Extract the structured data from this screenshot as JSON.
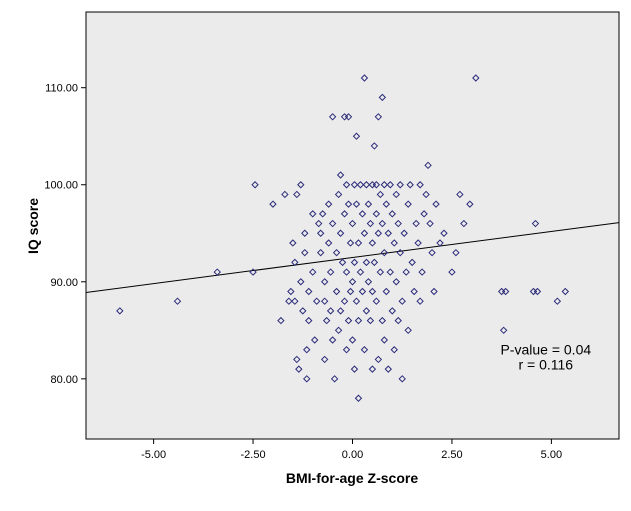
{
  "chart_data": {
    "type": "scatter",
    "title": "",
    "xlabel": "BMI-for-age Z-score",
    "ylabel": "IQ score",
    "xlim": [
      -6.7,
      6.7
    ],
    "ylim": [
      73.8,
      117.8
    ],
    "xticks": [
      -5.0,
      -2.5,
      0.0,
      2.5,
      5.0
    ],
    "xtick_labels": [
      "-5.00",
      "-2.50",
      "0.00",
      "2.50",
      "5.00"
    ],
    "yticks": [
      80,
      90,
      100,
      110
    ],
    "ytick_labels": [
      "80.00",
      "90.00",
      "100.00",
      "110.00"
    ],
    "grid": false,
    "plot_background": "#ebebeb",
    "marker_color": "#2b2b7a",
    "marker_shape": "diamond",
    "fit_line": {
      "x": [
        -6.7,
        6.7
      ],
      "y": [
        88.9,
        96.1
      ],
      "color": "#000000"
    },
    "annotations": [
      {
        "text": "P-value = 0.04",
        "x": 4.86,
        "y": 83.0
      },
      {
        "text": "r = 0.116",
        "x": 4.86,
        "y": 81.5
      }
    ],
    "points": [
      [
        -5.85,
        87
      ],
      [
        -4.4,
        88
      ],
      [
        -3.4,
        91
      ],
      [
        -2.5,
        91
      ],
      [
        -2.45,
        100
      ],
      [
        -2.0,
        98
      ],
      [
        -1.7,
        99
      ],
      [
        -1.8,
        86
      ],
      [
        -1.6,
        88
      ],
      [
        -1.55,
        89
      ],
      [
        -1.5,
        94
      ],
      [
        -1.45,
        92
      ],
      [
        -1.45,
        88
      ],
      [
        -1.4,
        82
      ],
      [
        -1.35,
        81
      ],
      [
        -1.4,
        99
      ],
      [
        -1.3,
        100
      ],
      [
        -1.3,
        90
      ],
      [
        -1.25,
        87
      ],
      [
        -1.2,
        95
      ],
      [
        -1.2,
        93
      ],
      [
        -1.15,
        83
      ],
      [
        -1.15,
        80
      ],
      [
        -1.1,
        89
      ],
      [
        -1.1,
        86
      ],
      [
        -1.0,
        97
      ],
      [
        -1.0,
        91
      ],
      [
        -0.95,
        84
      ],
      [
        -0.9,
        88
      ],
      [
        -0.85,
        96
      ],
      [
        -0.8,
        95
      ],
      [
        -0.8,
        93
      ],
      [
        -0.75,
        97
      ],
      [
        -0.7,
        90
      ],
      [
        -0.7,
        88
      ],
      [
        -0.7,
        82
      ],
      [
        -0.65,
        86
      ],
      [
        -0.6,
        98
      ],
      [
        -0.6,
        94
      ],
      [
        -0.55,
        91
      ],
      [
        -0.55,
        87
      ],
      [
        -0.5,
        107
      ],
      [
        -0.5,
        96
      ],
      [
        -0.5,
        84
      ],
      [
        -0.45,
        80
      ],
      [
        -0.4,
        93
      ],
      [
        -0.4,
        89
      ],
      [
        -0.35,
        99
      ],
      [
        -0.35,
        85
      ],
      [
        -0.3,
        101
      ],
      [
        -0.3,
        95
      ],
      [
        -0.3,
        87
      ],
      [
        -0.25,
        92
      ],
      [
        -0.2,
        107
      ],
      [
        -0.2,
        97
      ],
      [
        -0.2,
        88
      ],
      [
        -0.15,
        100
      ],
      [
        -0.15,
        91
      ],
      [
        -0.15,
        83
      ],
      [
        -0.1,
        107
      ],
      [
        -0.1,
        98
      ],
      [
        -0.1,
        86
      ],
      [
        -0.05,
        94
      ],
      [
        -0.05,
        89
      ],
      [
        0.0,
        96
      ],
      [
        0.0,
        90
      ],
      [
        0.0,
        84
      ],
      [
        0.05,
        100
      ],
      [
        0.05,
        92
      ],
      [
        0.05,
        81
      ],
      [
        0.1,
        105
      ],
      [
        0.1,
        98
      ],
      [
        0.1,
        88
      ],
      [
        0.15,
        94
      ],
      [
        0.15,
        86
      ],
      [
        0.15,
        78
      ],
      [
        0.2,
        100
      ],
      [
        0.2,
        91
      ],
      [
        0.25,
        97
      ],
      [
        0.25,
        89
      ],
      [
        0.3,
        111
      ],
      [
        0.3,
        95
      ],
      [
        0.3,
        83
      ],
      [
        0.35,
        100
      ],
      [
        0.35,
        92
      ],
      [
        0.35,
        87
      ],
      [
        0.4,
        98
      ],
      [
        0.4,
        90
      ],
      [
        0.45,
        96
      ],
      [
        0.45,
        86
      ],
      [
        0.5,
        100
      ],
      [
        0.5,
        94
      ],
      [
        0.5,
        89
      ],
      [
        0.5,
        81
      ],
      [
        0.55,
        104
      ],
      [
        0.55,
        92
      ],
      [
        0.6,
        100
      ],
      [
        0.6,
        97
      ],
      [
        0.6,
        88
      ],
      [
        0.65,
        107
      ],
      [
        0.65,
        95
      ],
      [
        0.65,
        82
      ],
      [
        0.7,
        99
      ],
      [
        0.7,
        91
      ],
      [
        0.75,
        109
      ],
      [
        0.75,
        96
      ],
      [
        0.75,
        86
      ],
      [
        0.8,
        100
      ],
      [
        0.8,
        93
      ],
      [
        0.8,
        84
      ],
      [
        0.85,
        98
      ],
      [
        0.85,
        89
      ],
      [
        0.9,
        95
      ],
      [
        0.9,
        81
      ],
      [
        0.95,
        100
      ],
      [
        0.95,
        91
      ],
      [
        1.0,
        97
      ],
      [
        1.0,
        87
      ],
      [
        1.05,
        94
      ],
      [
        1.05,
        83
      ],
      [
        1.1,
        99
      ],
      [
        1.1,
        90
      ],
      [
        1.15,
        96
      ],
      [
        1.15,
        86
      ],
      [
        1.2,
        100
      ],
      [
        1.2,
        93
      ],
      [
        1.25,
        88
      ],
      [
        1.25,
        80
      ],
      [
        1.3,
        95
      ],
      [
        1.35,
        91
      ],
      [
        1.4,
        98
      ],
      [
        1.4,
        85
      ],
      [
        1.45,
        100
      ],
      [
        1.5,
        92
      ],
      [
        1.55,
        89
      ],
      [
        1.6,
        96
      ],
      [
        1.65,
        94
      ],
      [
        1.7,
        100
      ],
      [
        1.7,
        88
      ],
      [
        1.75,
        91
      ],
      [
        1.8,
        97
      ],
      [
        1.85,
        99
      ],
      [
        1.9,
        102
      ],
      [
        1.95,
        96
      ],
      [
        2.0,
        93
      ],
      [
        2.05,
        89
      ],
      [
        2.1,
        98
      ],
      [
        2.2,
        94
      ],
      [
        2.3,
        95
      ],
      [
        2.5,
        91
      ],
      [
        2.6,
        93
      ],
      [
        2.7,
        99
      ],
      [
        2.8,
        96
      ],
      [
        2.95,
        98
      ],
      [
        3.1,
        111
      ],
      [
        3.75,
        89
      ],
      [
        3.8,
        85
      ],
      [
        3.85,
        89
      ],
      [
        4.55,
        89
      ],
      [
        4.6,
        96
      ],
      [
        4.65,
        89
      ],
      [
        5.15,
        88
      ],
      [
        5.35,
        89
      ]
    ]
  }
}
